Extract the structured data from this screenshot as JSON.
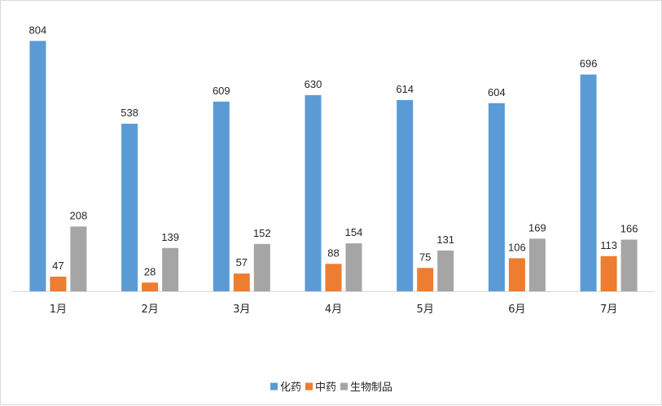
{
  "chart_data": {
    "type": "bar",
    "categories": [
      "1月",
      "2月",
      "3月",
      "4月",
      "5月",
      "6月",
      "7月"
    ],
    "series": [
      {
        "name": "化药",
        "color": "#5b9bd5",
        "values": [
          804,
          538,
          609,
          630,
          614,
          604,
          696
        ]
      },
      {
        "name": "中药",
        "color": "#ed7d31",
        "values": [
          47,
          28,
          57,
          88,
          75,
          106,
          113
        ]
      },
      {
        "name": "生物制品",
        "color": "#a5a5a5",
        "values": [
          208,
          139,
          152,
          154,
          131,
          169,
          166
        ]
      }
    ],
    "data_labels": true,
    "grid": false,
    "legend_position": "bottom",
    "ylim": [
      0,
      810
    ]
  }
}
